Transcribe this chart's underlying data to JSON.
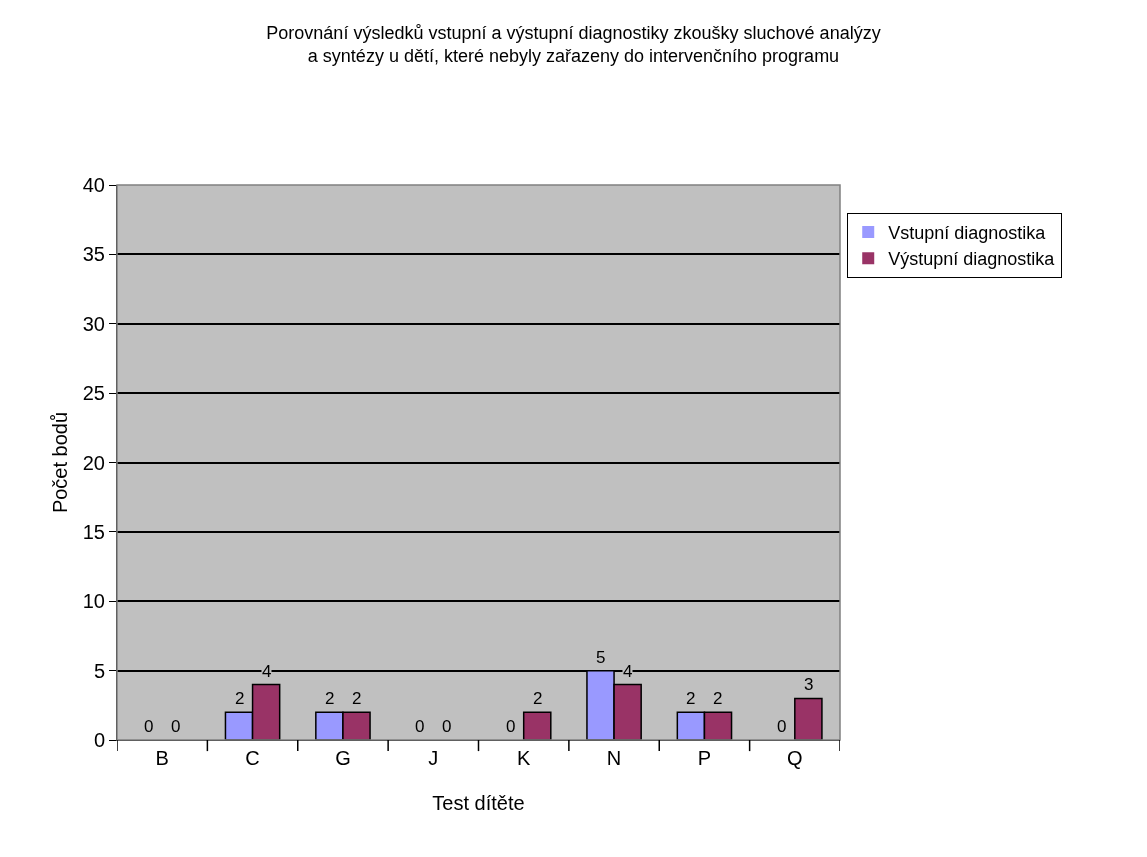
{
  "chart_data": {
    "type": "bar",
    "title": "Porovnání výsledků vstupní a výstupní diagnostiky zkoušky sluchové analýzy\na syntézy u dětí, které nebyly zařazeny do intervenčního programu",
    "xlabel": "Test dítěte",
    "ylabel": "Počet bodů",
    "categories": [
      "B",
      "C",
      "G",
      "J",
      "K",
      "N",
      "P",
      "Q"
    ],
    "series": [
      {
        "name": "Vstupní diagnostika",
        "color": "#9999ff",
        "values": [
          0,
          2,
          2,
          0,
          0,
          5,
          2,
          0
        ]
      },
      {
        "name": "Výstupní diagnostika",
        "color": "#993366",
        "values": [
          0,
          4,
          2,
          0,
          2,
          4,
          2,
          3
        ]
      }
    ],
    "ylim": [
      0,
      40
    ],
    "yticks": [
      0,
      5,
      10,
      15,
      20,
      25,
      30,
      35,
      40
    ],
    "grid": "y",
    "legend": "right",
    "data_labels": true
  }
}
